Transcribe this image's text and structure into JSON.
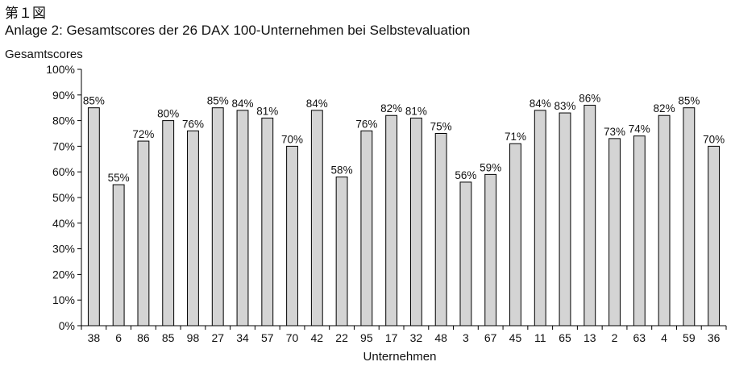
{
  "figure_label": "第１図",
  "caption": "Anlage 2: Gesamtscores der 26 DAX 100-Unternehmen bei Selbstevaluation",
  "chart_data": {
    "type": "bar",
    "title": "",
    "ylabel": "Gesamtscores",
    "xlabel": "Unternehmen",
    "ylim": [
      0,
      100
    ],
    "yticks": [
      0,
      10,
      20,
      30,
      40,
      50,
      60,
      70,
      80,
      90,
      100
    ],
    "ytick_suffix": "%",
    "grid": false,
    "bar_color": "#d4d4d4",
    "categories": [
      "38",
      "6",
      "86",
      "85",
      "98",
      "27",
      "34",
      "57",
      "70",
      "42",
      "22",
      "95",
      "17",
      "32",
      "48",
      "3",
      "67",
      "45",
      "11",
      "65",
      "13",
      "2",
      "63",
      "4",
      "59",
      "36"
    ],
    "values": [
      85,
      55,
      72,
      80,
      76,
      85,
      84,
      81,
      70,
      84,
      58,
      76,
      82,
      81,
      75,
      56,
      59,
      71,
      84,
      83,
      86,
      73,
      74,
      82,
      85,
      70
    ],
    "data_labels": [
      "85%",
      "55%",
      "72%",
      "80%",
      "76%",
      "85%",
      "84%",
      "81%",
      "70%",
      "84%",
      "58%",
      "76%",
      "82%",
      "81%",
      "75%",
      "56%",
      "59%",
      "71%",
      "84%",
      "83%",
      "86%",
      "73%",
      "74%",
      "82%",
      "85%",
      "70%"
    ]
  }
}
